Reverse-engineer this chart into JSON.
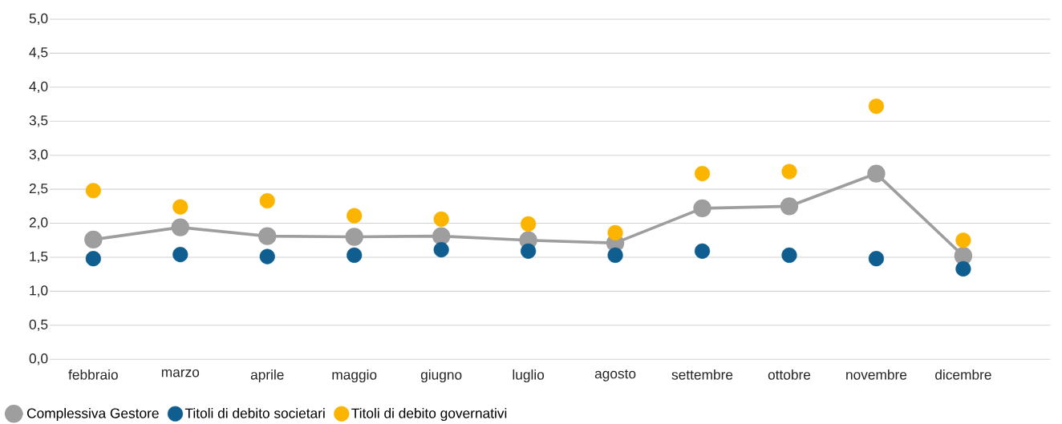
{
  "chart_data": {
    "type": "line",
    "categories": [
      "febbraio",
      "marzo",
      "aprile",
      "maggio",
      "giugno",
      "luglio",
      "agosto",
      "settembre",
      "ottobre",
      "novembre",
      "dicembre"
    ],
    "series": [
      {
        "name": "Complessiva Gestore",
        "color": "#9e9e9e",
        "values": [
          1.76,
          1.94,
          1.81,
          1.8,
          1.81,
          1.75,
          1.71,
          2.22,
          2.25,
          2.73,
          1.52
        ]
      },
      {
        "name": "Titoli di debito societari",
        "type": "scatter",
        "color": "#0f5e8f",
        "values": [
          1.48,
          1.54,
          1.51,
          1.53,
          1.61,
          1.59,
          1.53,
          1.59,
          1.53,
          1.48,
          1.33
        ]
      },
      {
        "name": "Titoli di debito governativi",
        "type": "scatter",
        "color": "#fbb400",
        "values": [
          2.48,
          2.24,
          2.33,
          2.11,
          2.06,
          1.99,
          1.86,
          2.73,
          2.76,
          3.72,
          1.75
        ]
      }
    ],
    "ylim": [
      0,
      5
    ],
    "yticks": [
      {
        "value": 0,
        "label": "0,0"
      },
      {
        "value": 0.5,
        "label": "0,5"
      },
      {
        "value": 1,
        "label": "1,0"
      },
      {
        "value": 1.5,
        "label": "1,5"
      },
      {
        "value": 2,
        "label": "2,0"
      },
      {
        "value": 2.5,
        "label": "2,5"
      },
      {
        "value": 3,
        "label": "3,0"
      },
      {
        "value": 3.5,
        "label": "3,5"
      },
      {
        "value": 4,
        "label": "4,0"
      },
      {
        "value": 4.5,
        "label": "4,5"
      },
      {
        "value": 5,
        "label": "5,0"
      }
    ],
    "grid": "y",
    "legend": "bottom left",
    "marker": "circle"
  }
}
